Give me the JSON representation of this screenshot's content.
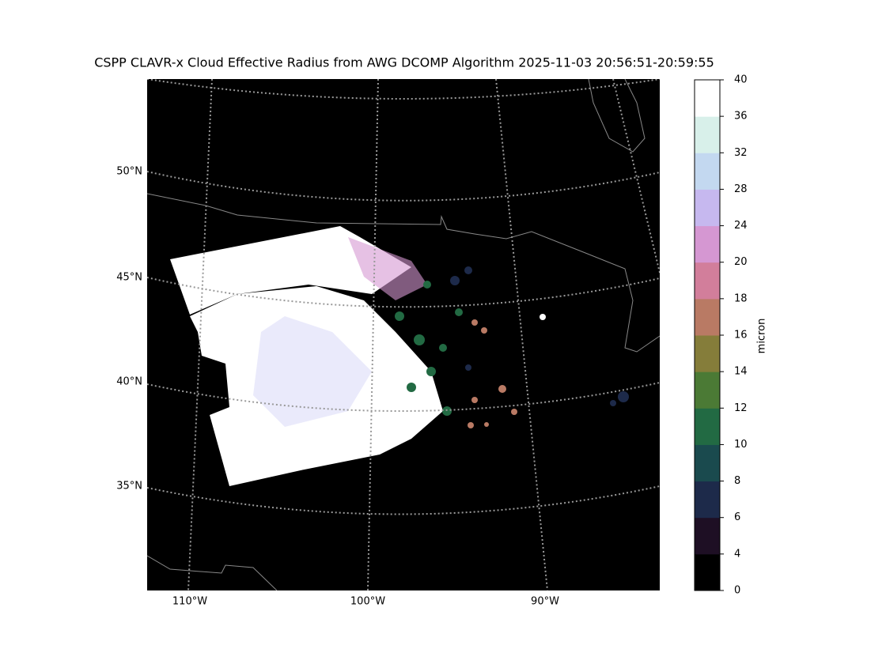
{
  "title": "CSPP CLAVR-x Cloud Effective Radius from AWG DCOMP Algorithm 2025-11-03 20:56:51-20:59:55",
  "lat_labels": [
    "50°N",
    "45°N",
    "40°N",
    "35°N"
  ],
  "lon_labels": [
    "110°W",
    "100°W",
    "90°W"
  ],
  "colorbar": {
    "label": "micron",
    "ticks": [
      0,
      4,
      6,
      8,
      10,
      12,
      14,
      16,
      18,
      20,
      24,
      28,
      32,
      36,
      40
    ],
    "colors": [
      "#000000",
      "#1e0f24",
      "#1d2a4a",
      "#1a4a4e",
      "#226a43",
      "#4b7a35",
      "#857d3a",
      "#b97a64",
      "#d27e9b",
      "#d597d2",
      "#c6b8ef",
      "#c3d8f0",
      "#d8f0ea",
      "#ffffff"
    ]
  }
}
